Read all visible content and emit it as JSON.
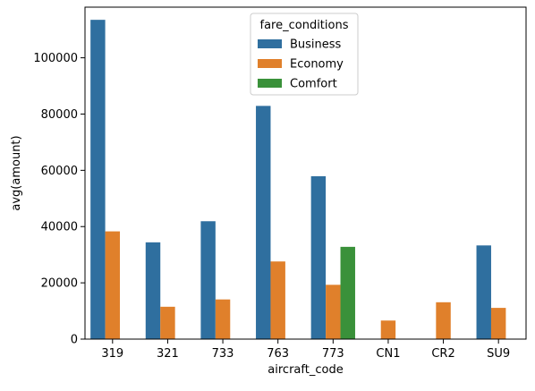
{
  "chart_data": {
    "type": "bar",
    "xlabel": "aircraft_code",
    "ylabel": "avg(amount)",
    "categories": [
      "319",
      "321",
      "733",
      "763",
      "773",
      "CN1",
      "CR2",
      "SU9"
    ],
    "ylim": [
      0,
      118000
    ],
    "yticks": [
      0,
      20000,
      40000,
      60000,
      80000,
      100000
    ],
    "ytick_labels": [
      "0",
      "20000",
      "40000",
      "60000",
      "80000",
      "100000"
    ],
    "legend": {
      "title": "fare_conditions",
      "placement": "upper center"
    },
    "series": [
      {
        "name": "Business",
        "color": "#2f6f9f",
        "values": [
          113500,
          34400,
          41900,
          82900,
          57900,
          null,
          null,
          33300
        ]
      },
      {
        "name": "Economy",
        "color": "#e0802b",
        "values": [
          38300,
          11500,
          14100,
          27600,
          19300,
          6600,
          13100,
          11100
        ]
      },
      {
        "name": "Comfort",
        "color": "#3a913a",
        "values": [
          null,
          null,
          null,
          null,
          32800,
          null,
          null,
          null
        ]
      }
    ]
  }
}
